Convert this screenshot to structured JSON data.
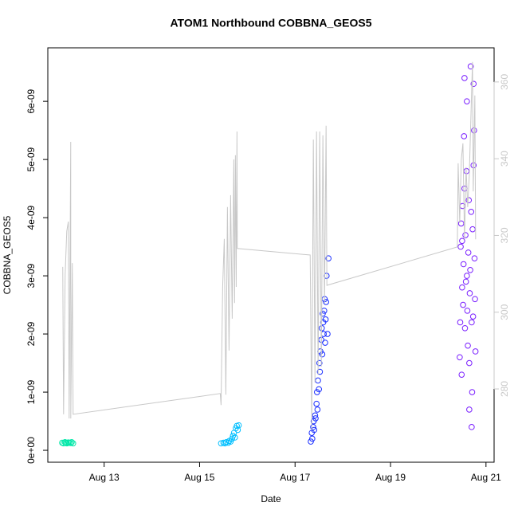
{
  "chart_data": {
    "type": "scatter",
    "title": "ATOM1 Northbound COBBNA_GEOS5",
    "xlabel": "Date",
    "ylabel": "COBBNA_GEOS5",
    "xlim": [
      11.82,
      21.17
    ],
    "xticks": [
      {
        "value": 13,
        "label": "Aug 13"
      },
      {
        "value": 15,
        "label": "Aug 15"
      },
      {
        "value": 17,
        "label": "Aug 17"
      },
      {
        "value": 19,
        "label": "Aug 19"
      },
      {
        "value": 21,
        "label": "Aug 21"
      }
    ],
    "ylim": [
      -2.05e-10,
      6.92e-09
    ],
    "yticks": [
      {
        "value": 0,
        "label": "0e+00"
      },
      {
        "value": 1e-09,
        "label": "1e-09"
      },
      {
        "value": 2e-09,
        "label": "2e-09"
      },
      {
        "value": 3e-09,
        "label": "3e-09"
      },
      {
        "value": 4e-09,
        "label": "4e-09"
      },
      {
        "value": 5e-09,
        "label": "5e-09"
      },
      {
        "value": 6e-09,
        "label": "6e-09"
      }
    ],
    "y2lim": [
      260.9,
      368.9
    ],
    "y2ticks": [
      280,
      300,
      320,
      340,
      360
    ],
    "y2color": "#c8c8c8",
    "series": [
      {
        "color": "#00e8a8",
        "x": [
          12.12,
          12.15,
          12.18,
          12.2,
          12.22,
          12.25,
          12.27,
          12.3,
          12.32,
          12.35
        ],
        "values": [
          1.3e-10,
          1.2e-10,
          1.4e-10,
          1.3e-10,
          1.2e-10,
          1.35e-10,
          1.3e-10,
          1.25e-10,
          1.4e-10,
          1.2e-10
        ]
      },
      {
        "color": "#00bfff",
        "x": [
          15.45,
          15.5,
          15.53,
          15.56,
          15.6,
          15.62,
          15.65,
          15.68,
          15.7,
          15.72,
          15.74,
          15.76,
          15.78,
          15.8,
          15.82
        ],
        "values": [
          1.2e-10,
          1.3e-10,
          1.2e-10,
          1.4e-10,
          1.3e-10,
          1.6e-10,
          1.5e-10,
          2e-10,
          2.5e-10,
          3e-10,
          2.2e-10,
          3.8e-10,
          4.2e-10,
          3.5e-10,
          4.3e-10
        ]
      },
      {
        "color": "#1a2eff",
        "x": [
          17.33,
          17.35,
          17.36,
          17.38,
          17.39,
          17.4,
          17.42,
          17.43,
          17.45,
          17.46,
          17.47,
          17.48,
          17.5,
          17.51,
          17.52,
          17.53,
          17.55,
          17.56,
          17.57,
          17.58,
          17.59,
          17.6,
          17.61,
          17.62,
          17.63,
          17.64,
          17.65,
          17.66,
          17.68,
          17.7
        ],
        "values": [
          1.5e-10,
          3e-10,
          2e-10,
          4e-10,
          5e-10,
          3.5e-10,
          6e-10,
          5.5e-10,
          8e-10,
          1e-09,
          7e-10,
          1.2e-09,
          1.05e-09,
          1.5e-09,
          1.35e-09,
          1.7e-09,
          1.9e-09,
          2.1e-09,
          1.65e-09,
          2.35e-09,
          2.2e-09,
          2e-09,
          2.4e-09,
          2.6e-09,
          1.85e-09,
          2.25e-09,
          2.55e-09,
          3e-09,
          2e-09,
          3.3e-09
        ]
      },
      {
        "color": "#7a1fff",
        "x": [
          20.45,
          20.46,
          20.47,
          20.48,
          20.49,
          20.5,
          20.51,
          20.52,
          20.53,
          20.54,
          20.55,
          20.56,
          20.57,
          20.58,
          20.59,
          20.6,
          20.61,
          20.62,
          20.63,
          20.64,
          20.65,
          20.66,
          20.67,
          20.68,
          20.69,
          20.7,
          20.71,
          20.72,
          20.73,
          20.74,
          20.75,
          20.76,
          20.77,
          20.78,
          20.5,
          20.55,
          20.6,
          20.65,
          20.7,
          20.74
        ],
        "values": [
          1.6e-09,
          2.2e-09,
          3.5e-09,
          3.9e-09,
          1.3e-09,
          2.8e-09,
          4.2e-09,
          2.5e-09,
          3.2e-09,
          5.4e-09,
          6.4e-09,
          2.1e-09,
          3.7e-09,
          2.9e-09,
          4.8e-09,
          6e-09,
          2.4e-09,
          1.8e-09,
          3.4e-09,
          4.3e-09,
          1.5e-09,
          2.7e-09,
          3.1e-09,
          6.6e-09,
          4.1e-09,
          4e-10,
          1e-09,
          3.8e-09,
          2.3e-09,
          6.3e-09,
          5.5e-09,
          3.3e-09,
          2.6e-09,
          1.7e-09,
          3.6e-09,
          4.5e-09,
          3e-09,
          7e-10,
          2.2e-09,
          4.9e-09
        ]
      },
      {
        "type": "line",
        "axis": "y2",
        "color": "#c8c8c8",
        "x": [
          12.133,
          12.15,
          12.183,
          12.217,
          12.25,
          12.267,
          12.3,
          12.301,
          12.333,
          12.35,
          15.433,
          15.45,
          15.483,
          15.517,
          15.55,
          15.583,
          15.617,
          15.65,
          15.683,
          15.717,
          15.733,
          15.75,
          15.767,
          15.783,
          15.79,
          17.317,
          17.35,
          17.383,
          17.417,
          17.45,
          17.483,
          17.517,
          17.55,
          17.583,
          17.617,
          17.65,
          17.667,
          20.4,
          20.417,
          20.45,
          20.483,
          20.517,
          20.55,
          20.583,
          20.617,
          20.65,
          20.683,
          20.717,
          20.733,
          20.767,
          20.783
        ],
        "values": [
          311.8,
          273.4,
          309.7,
          321.1,
          323.6,
          272.3,
          344.4,
          272.3,
          312.8,
          273.4,
          278.8,
          275.8,
          306.6,
          319.1,
          278.5,
          327.4,
          290,
          330.5,
          298.3,
          339.8,
          302.4,
          340.9,
          306.6,
          347.1,
          316.6,
          314.9,
          269.2,
          345,
          281.7,
          347.1,
          283.7,
          347.1,
          285.8,
          346.1,
          302.4,
          348.6,
          307,
          317,
          338.8,
          323.2,
          339.8,
          344,
          319,
          337.8,
          327.4,
          335.7,
          350.2,
          365.2,
          331.5,
          356.5,
          319
        ]
      }
    ]
  }
}
